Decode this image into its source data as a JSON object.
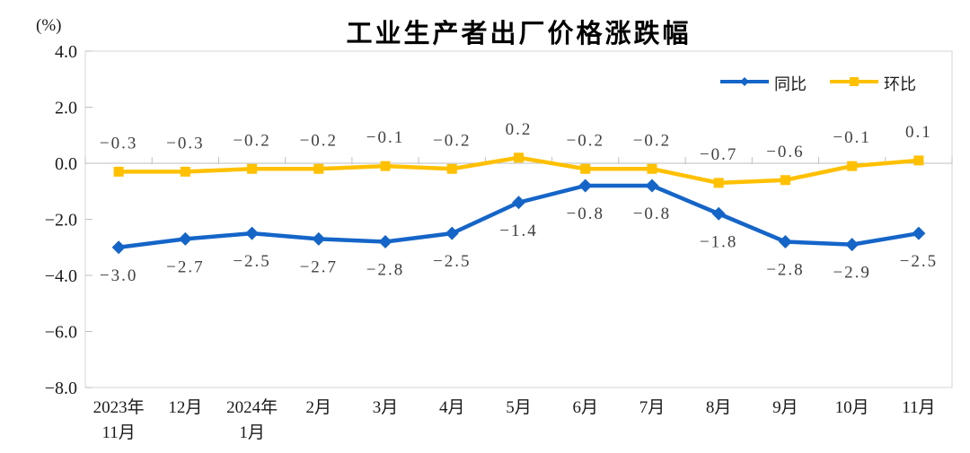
{
  "chart": {
    "title": "工业生产者出厂价格涨跌幅",
    "unit_label": "(%)"
  },
  "chart_data": {
    "type": "line",
    "title": "工业生产者出厂价格涨跌幅",
    "ylabel": "(%)",
    "ylim": [
      -8.0,
      4.0
    ],
    "ytick_step": 2.0,
    "grid": false,
    "legend_position": "top-right-inside",
    "categories": [
      "2023年11月",
      "12月",
      "2024年1月",
      "2月",
      "3月",
      "4月",
      "5月",
      "6月",
      "7月",
      "8月",
      "9月",
      "10月",
      "11月"
    ],
    "x_tick_lines": [
      [
        "2023年",
        "11月"
      ],
      [
        "12月"
      ],
      [
        "2024年",
        "1月"
      ],
      [
        "2月"
      ],
      [
        "3月"
      ],
      [
        "4月"
      ],
      [
        "5月"
      ],
      [
        "6月"
      ],
      [
        "7月"
      ],
      [
        "8月"
      ],
      [
        "9月"
      ],
      [
        "10月"
      ],
      [
        "11月"
      ]
    ],
    "series": [
      {
        "id": "yoy",
        "name": "同比",
        "color": "#1565C8",
        "marker": "diamond",
        "label_position": "below",
        "values": [
          -3.0,
          -2.7,
          -2.5,
          -2.7,
          -2.8,
          -2.5,
          -1.4,
          -0.8,
          -0.8,
          -1.8,
          -2.8,
          -2.9,
          -2.5
        ]
      },
      {
        "id": "mom",
        "name": "环比",
        "color": "#FFC000",
        "marker": "square",
        "label_position": "above",
        "values": [
          -0.3,
          -0.3,
          -0.2,
          -0.2,
          -0.1,
          -0.2,
          0.2,
          -0.2,
          -0.2,
          -0.7,
          -0.6,
          -0.1,
          0.1
        ]
      }
    ],
    "axis_color": "#D6D6D6",
    "zero_line_color": "#BFBFBF",
    "tick_color": "#BFBFBF",
    "data_label_color": "#404040",
    "tick_label_color": "#1A1A1A"
  }
}
